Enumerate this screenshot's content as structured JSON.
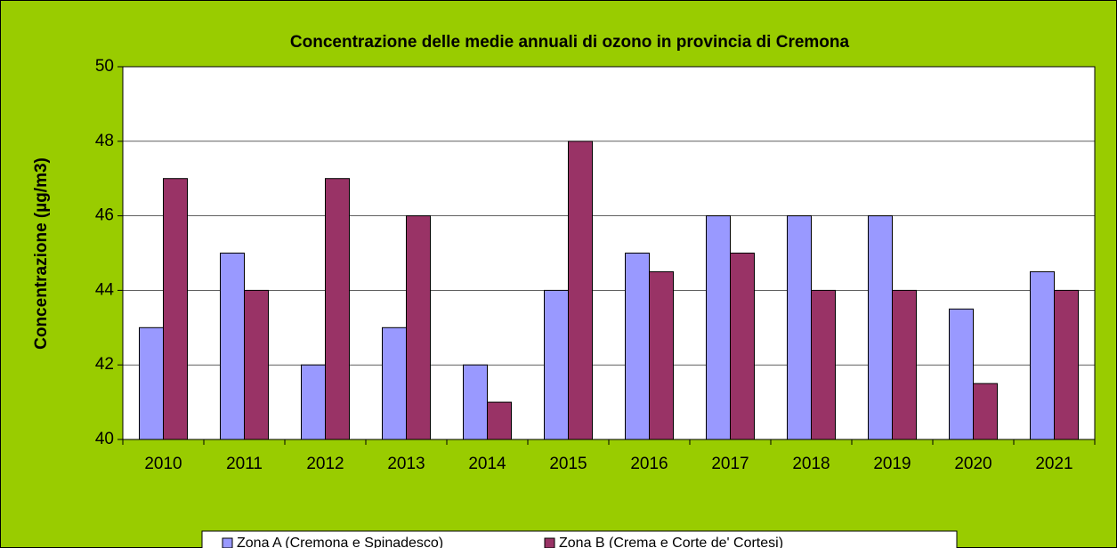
{
  "chart_data": {
    "type": "bar",
    "title": "Concentrazione delle medie annuali di ozono in provincia di Cremona",
    "y_label": "Concentrazione (µg/m3)",
    "categories": [
      "2010",
      "2011",
      "2012",
      "2013",
      "2014",
      "2015",
      "2016",
      "2017",
      "2018",
      "2019",
      "2020",
      "2021"
    ],
    "series": [
      {
        "name": "Zona A (Cremona e Spinadesco)",
        "color": "#9999ff",
        "values": [
          43,
          45,
          42,
          43,
          42,
          44,
          45,
          46,
          46,
          46,
          43.5,
          44.5
        ]
      },
      {
        "name": "Zona B (Crema e Corte de' Cortesi)",
        "color": "#993366",
        "values": [
          47,
          44,
          47,
          46,
          41,
          48,
          44.5,
          45,
          44,
          44,
          41.5,
          44
        ]
      }
    ],
    "ylim": [
      40,
      50
    ],
    "yticks": [
      40,
      42,
      44,
      46,
      48,
      50
    ],
    "grid": true,
    "legend": "bottom"
  }
}
